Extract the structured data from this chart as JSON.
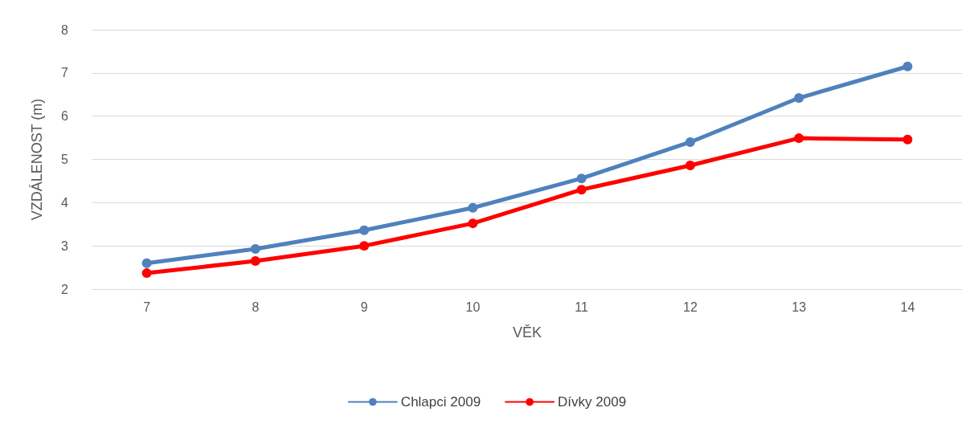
{
  "chart_data": {
    "type": "line",
    "xlabel": "VĚK",
    "ylabel": "VZDÁLENOST (m)",
    "categories": [
      "7",
      "8",
      "9",
      "10",
      "11",
      "12",
      "13",
      "14"
    ],
    "series": [
      {
        "name": "Chlapci 2009",
        "color": "#4f81bd",
        "values": [
          2.6,
          2.93,
          3.36,
          3.88,
          4.56,
          5.4,
          6.42,
          7.15
        ]
      },
      {
        "name": "Dívky 2009",
        "color": "#ff0000",
        "values": [
          2.37,
          2.65,
          3.0,
          3.52,
          4.3,
          4.86,
          5.49,
          5.46
        ]
      }
    ],
    "ylim": [
      2,
      8
    ],
    "yticks": [
      2,
      3,
      4,
      5,
      6,
      7,
      8
    ],
    "grid": "y",
    "legend": "bottom",
    "marker": "circle",
    "line_style": "solid"
  }
}
